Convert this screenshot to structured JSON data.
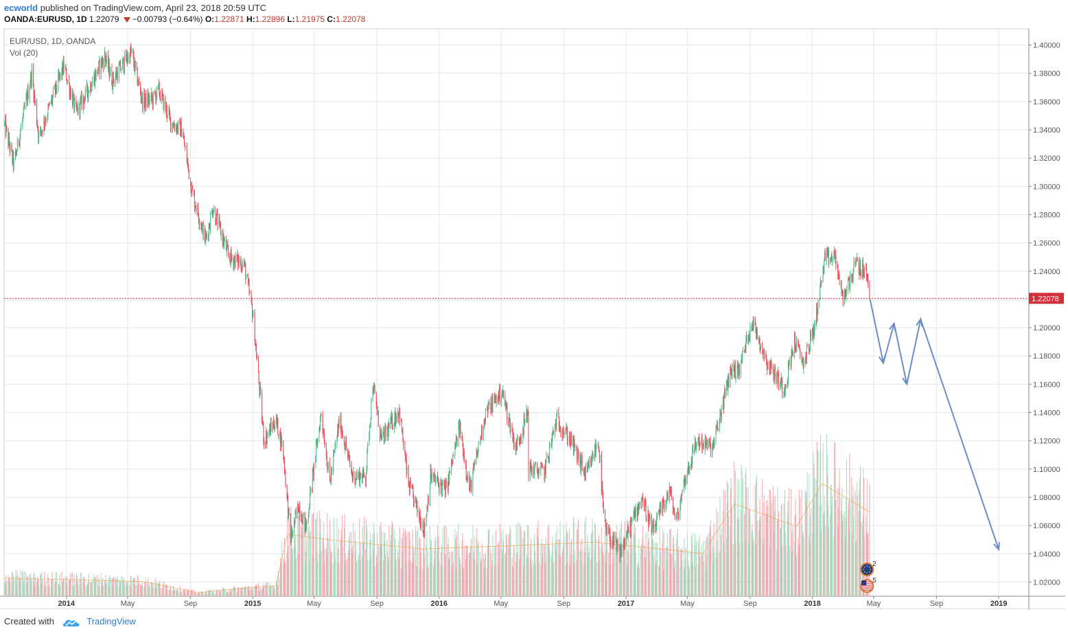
{
  "header": {
    "author": "ecworld",
    "published_text": "published on TradingView.com, April 23, 2018 20:59 UTC",
    "symbol": "OANDA:EURUSD, 1D",
    "last": "1.22079",
    "change": "−0.00793 (−0.64%)",
    "o_label": "O:",
    "o_value": "1.22871",
    "h_label": "H:",
    "h_value": "1.22896",
    "l_label": "L:",
    "l_value": "1.21975",
    "c_label": "C:",
    "c_value": "1.22078"
  },
  "legend": {
    "series_title": "EUR/USD, 1D, OANDA",
    "volume_title": "Vol (20)"
  },
  "footer": {
    "created_with": "Created with",
    "brand": "TradingView"
  },
  "event_markers": [
    {
      "count": "2",
      "icon": "eu-flag-icon"
    },
    {
      "count": "5",
      "icon": "us-flag-icon"
    }
  ],
  "colors": {
    "up": "#53b987",
    "down": "#eb4d5c",
    "vol_up": "#a9dcc3",
    "vol_down": "#f5a6ae",
    "grid": "#e0e8f0",
    "price_line": "#d4303b",
    "projection": "#6b8cc6",
    "axis_text": "#555555"
  },
  "chart_data": {
    "type": "candlestick",
    "title": "EUR/USD, 1D, OANDA",
    "x_range": [
      "2013-09-01",
      "2019-03-01"
    ],
    "ylim": [
      1.01,
      1.41
    ],
    "y_ticks": [
      "1.40000",
      "1.38000",
      "1.36000",
      "1.34000",
      "1.32000",
      "1.30000",
      "1.28000",
      "1.26000",
      "1.24000",
      "1.22000",
      "1.20000",
      "1.18000",
      "1.16000",
      "1.14000",
      "1.12000",
      "1.10000",
      "1.08000",
      "1.06000",
      "1.04000",
      "1.02000"
    ],
    "x_ticks": [
      {
        "date": "2014-01-01",
        "label": "2014",
        "bold": true
      },
      {
        "date": "2014-05-01",
        "label": "May"
      },
      {
        "date": "2014-09-01",
        "label": "Sep"
      },
      {
        "date": "2015-01-01",
        "label": "2015",
        "bold": true
      },
      {
        "date": "2015-05-01",
        "label": "May"
      },
      {
        "date": "2015-09-01",
        "label": "Sep"
      },
      {
        "date": "2016-01-01",
        "label": "2016",
        "bold": true
      },
      {
        "date": "2016-05-01",
        "label": "May"
      },
      {
        "date": "2016-09-01",
        "label": "Sep"
      },
      {
        "date": "2017-01-01",
        "label": "2017",
        "bold": true
      },
      {
        "date": "2017-05-01",
        "label": "May"
      },
      {
        "date": "2017-09-01",
        "label": "Sep"
      },
      {
        "date": "2018-01-01",
        "label": "2018",
        "bold": true
      },
      {
        "date": "2018-05-01",
        "label": "May"
      },
      {
        "date": "2018-09-01",
        "label": "Sep"
      },
      {
        "date": "2019-01-01",
        "label": "2019",
        "bold": true
      }
    ],
    "last_price": 1.22078,
    "last_price_label": "1.22078",
    "price_path": [
      [
        "2013-09-01",
        1.345
      ],
      [
        "2013-09-20",
        1.315
      ],
      [
        "2013-10-25",
        1.38
      ],
      [
        "2013-11-08",
        1.335
      ],
      [
        "2013-12-27",
        1.385
      ],
      [
        "2014-01-20",
        1.352
      ],
      [
        "2014-02-15",
        1.37
      ],
      [
        "2014-03-17",
        1.392
      ],
      [
        "2014-04-01",
        1.375
      ],
      [
        "2014-05-08",
        1.395
      ],
      [
        "2014-05-30",
        1.36
      ],
      [
        "2014-06-20",
        1.362
      ],
      [
        "2014-07-01",
        1.368
      ],
      [
        "2014-07-25",
        1.345
      ],
      [
        "2014-08-15",
        1.34
      ],
      [
        "2014-09-05",
        1.295
      ],
      [
        "2014-10-01",
        1.262
      ],
      [
        "2014-10-15",
        1.285
      ],
      [
        "2014-11-15",
        1.25
      ],
      [
        "2014-12-15",
        1.245
      ],
      [
        "2015-01-01",
        1.21
      ],
      [
        "2015-01-23",
        1.12
      ],
      [
        "2015-02-15",
        1.135
      ],
      [
        "2015-03-01",
        1.115
      ],
      [
        "2015-03-16",
        1.05
      ],
      [
        "2015-04-01",
        1.075
      ],
      [
        "2015-04-15",
        1.058
      ],
      [
        "2015-05-15",
        1.14
      ],
      [
        "2015-06-01",
        1.09
      ],
      [
        "2015-06-20",
        1.135
      ],
      [
        "2015-07-15",
        1.095
      ],
      [
        "2015-08-10",
        1.095
      ],
      [
        "2015-08-24",
        1.16
      ],
      [
        "2015-09-10",
        1.12
      ],
      [
        "2015-10-15",
        1.142
      ],
      [
        "2015-11-01",
        1.09
      ],
      [
        "2015-12-03",
        1.057
      ],
      [
        "2015-12-15",
        1.095
      ],
      [
        "2016-01-15",
        1.085
      ],
      [
        "2016-02-10",
        1.13
      ],
      [
        "2016-03-01",
        1.085
      ],
      [
        "2016-04-01",
        1.14
      ],
      [
        "2016-05-03",
        1.155
      ],
      [
        "2016-05-30",
        1.115
      ],
      [
        "2016-06-23",
        1.14
      ],
      [
        "2016-06-24",
        1.1
      ],
      [
        "2016-07-25",
        1.098
      ],
      [
        "2016-08-18",
        1.135
      ],
      [
        "2016-09-15",
        1.12
      ],
      [
        "2016-10-15",
        1.095
      ],
      [
        "2016-11-08",
        1.12
      ],
      [
        "2016-11-20",
        1.058
      ],
      [
        "2016-12-20",
        1.04
      ],
      [
        "2017-01-10",
        1.06
      ],
      [
        "2017-02-01",
        1.08
      ],
      [
        "2017-02-22",
        1.055
      ],
      [
        "2017-03-27",
        1.085
      ],
      [
        "2017-04-10",
        1.062
      ],
      [
        "2017-04-24",
        1.09
      ],
      [
        "2017-05-20",
        1.12
      ],
      [
        "2017-06-20",
        1.115
      ],
      [
        "2017-07-25",
        1.17
      ],
      [
        "2017-08-10",
        1.17
      ],
      [
        "2017-09-05",
        1.205
      ],
      [
        "2017-10-05",
        1.175
      ],
      [
        "2017-11-07",
        1.157
      ],
      [
        "2017-11-27",
        1.19
      ],
      [
        "2017-12-15",
        1.175
      ],
      [
        "2018-01-05",
        1.2
      ],
      [
        "2018-01-25",
        1.248
      ],
      [
        "2018-02-15",
        1.25
      ],
      [
        "2018-03-01",
        1.22
      ],
      [
        "2018-03-27",
        1.245
      ],
      [
        "2018-04-17",
        1.238
      ],
      [
        "2018-04-23",
        1.22079
      ]
    ],
    "projection_path": [
      [
        "2018-04-24",
        1.22
      ],
      [
        "2018-05-20",
        1.175
      ],
      [
        "2018-06-10",
        1.203
      ],
      [
        "2018-07-05",
        1.16
      ],
      [
        "2018-08-01",
        1.206
      ],
      [
        "2019-01-01",
        1.043
      ]
    ],
    "volume_series": {
      "name": "Vol (20)",
      "path": [
        [
          "2013-09-01",
          0.16
        ],
        [
          "2014-06-01",
          0.13
        ],
        [
          "2014-09-15",
          0.03
        ],
        [
          "2014-12-15",
          0.07
        ],
        [
          "2015-02-15",
          0.09
        ],
        [
          "2015-03-10",
          0.55
        ],
        [
          "2015-06-01",
          0.5
        ],
        [
          "2015-12-01",
          0.42
        ],
        [
          "2016-06-01",
          0.45
        ],
        [
          "2016-11-01",
          0.48
        ],
        [
          "2017-01-01",
          0.45
        ],
        [
          "2017-06-01",
          0.38
        ],
        [
          "2017-08-01",
          0.82
        ],
        [
          "2017-12-01",
          0.62
        ],
        [
          "2018-01-20",
          1.0
        ],
        [
          "2018-04-23",
          0.75
        ]
      ]
    }
  }
}
